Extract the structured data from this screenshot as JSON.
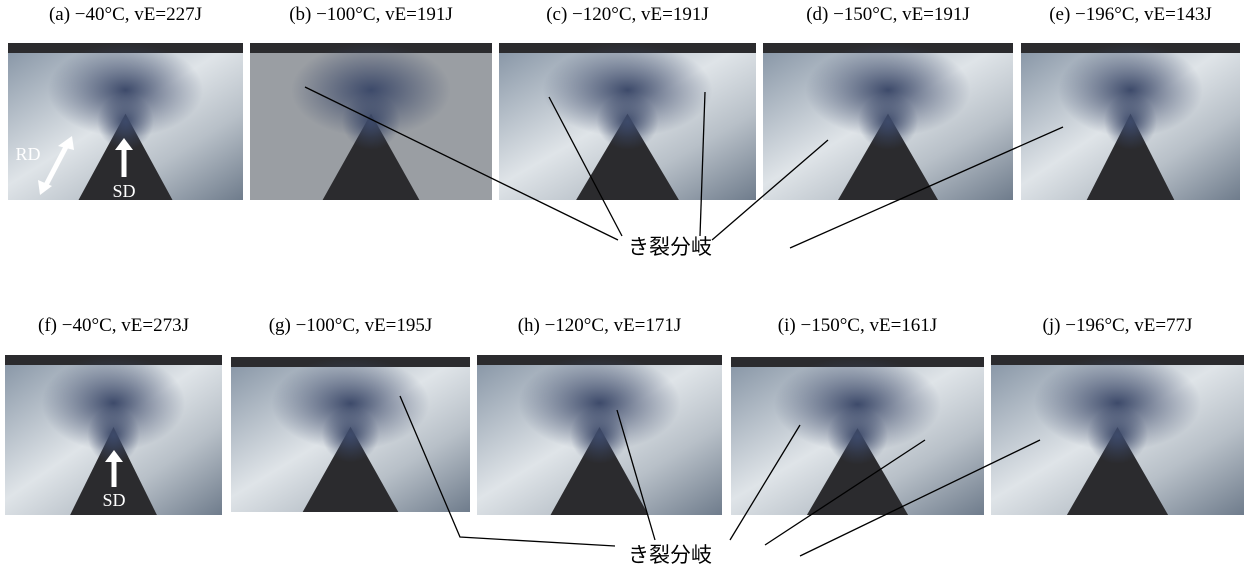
{
  "top_row": {
    "panels": [
      {
        "caption": "(a) −40°C, vE=227J"
      },
      {
        "caption": "(b) −100°C, vE=191J"
      },
      {
        "caption": "(c) −120°C, vE=191J"
      },
      {
        "caption": "(d) −150°C, vE=191J"
      },
      {
        "caption": "(e) −196°C, vE=143J"
      }
    ],
    "annotation": "き裂分岐"
  },
  "bottom_row": {
    "panels": [
      {
        "caption": "(f) −40°C, vE=273J"
      },
      {
        "caption": "(g) −100°C, vE=195J"
      },
      {
        "caption": "(h) −120°C, vE=171J"
      },
      {
        "caption": "(i) −150°C, vE=161J"
      },
      {
        "caption": "(j) −196°C, vE=77J"
      }
    ],
    "annotation": "き裂分岐"
  },
  "direction_labels": {
    "rd": "RD",
    "sd": "SD"
  }
}
